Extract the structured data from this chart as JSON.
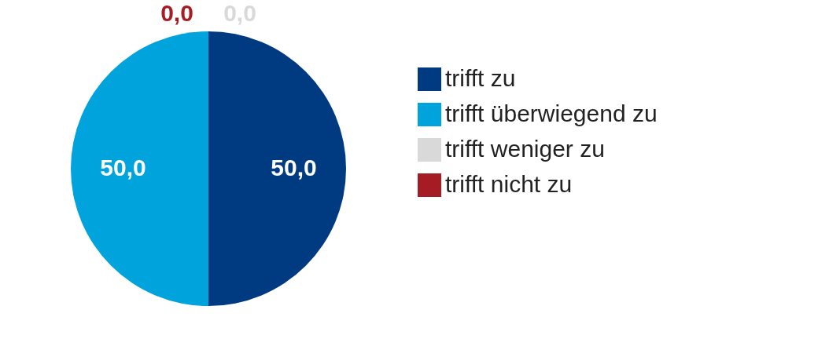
{
  "chart_data": {
    "type": "pie",
    "categories": [
      "trifft zu",
      "trifft überwiegend zu",
      "trifft weniger zu",
      "trifft nicht zu"
    ],
    "values": [
      50,
      50,
      0,
      0
    ],
    "colors": [
      "#003a80",
      "#00a3dc",
      "#d9d9d9",
      "#a51c24"
    ],
    "value_labels": [
      "50,0",
      "50,0",
      "0,0",
      "0,0"
    ],
    "legend": "right"
  }
}
